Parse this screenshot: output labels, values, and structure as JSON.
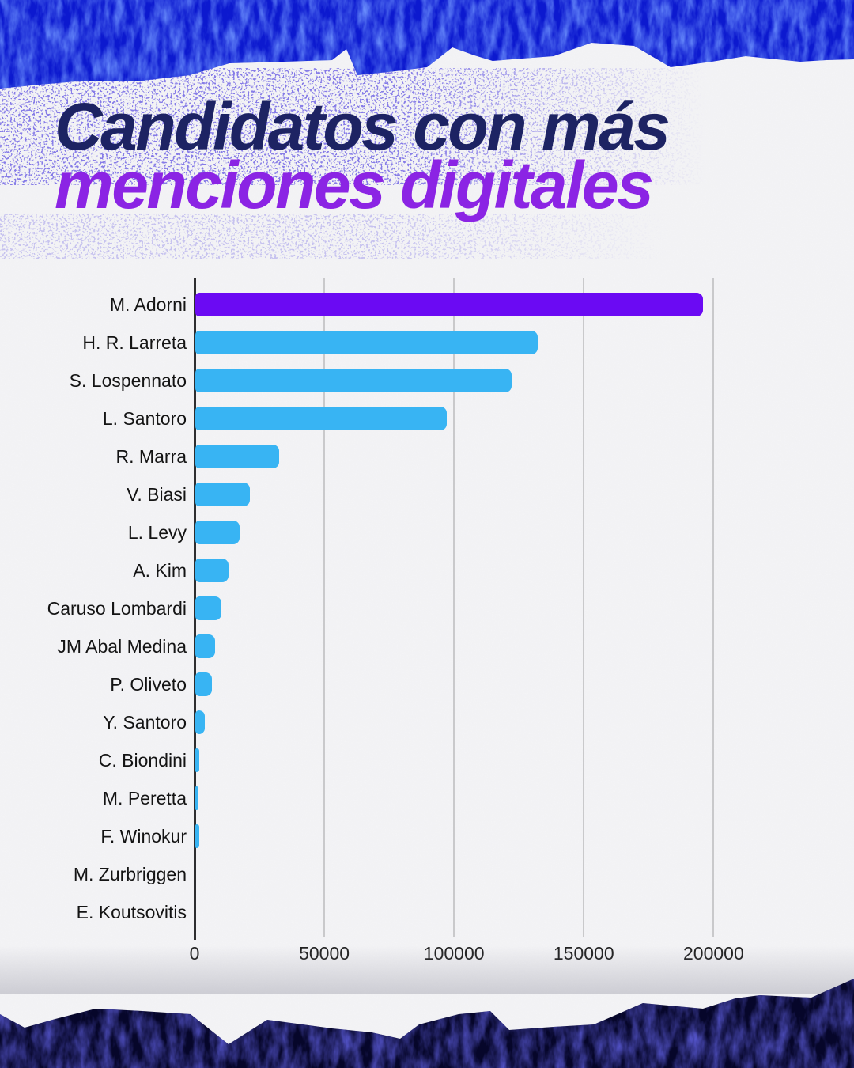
{
  "page": {
    "title": {
      "line1": "Candidatos con más",
      "line2": "menciones digitales"
    },
    "colors": {
      "title_line1": "#1d2363",
      "title_line2": "#8b24e4",
      "bar_highlight": "#6b0af3",
      "bar_default": "#38b4f3",
      "top_band": "#0c19cf",
      "bottom_band": "#06062a",
      "paper": "#f5f5f7",
      "gridline": "#c9c9cb",
      "axis": "#2e2e30",
      "speckle_ink": "#3d34cc"
    }
  },
  "chart_data": {
    "type": "bar",
    "orientation": "horizontal",
    "title": "Candidatos con más menciones digitales",
    "xlabel": "",
    "ylabel": "",
    "categories": [
      "M. Adorni",
      "H. R. Larreta",
      "S. Lospennato",
      "L. Santoro",
      "R. Marra",
      "V. Biasi",
      "L. Levy",
      "A. Kim",
      "Caruso Lombardi",
      "JM Abal Medina",
      "P. Oliveto",
      "Y. Santoro",
      "C. Biondini",
      "M. Peretta",
      "F. Winokur",
      "M. Zurbriggen",
      "E. Koutsovitis"
    ],
    "values": [
      195600,
      131800,
      121900,
      96800,
      32300,
      20900,
      17200,
      12900,
      10000,
      7500,
      6300,
      3700,
      1500,
      1300,
      1400,
      200,
      100
    ],
    "highlight_index": 0,
    "xticks": [
      0,
      50000,
      100000,
      150000,
      200000
    ],
    "xlim": [
      0,
      220000
    ],
    "grid": true,
    "legend": false
  }
}
